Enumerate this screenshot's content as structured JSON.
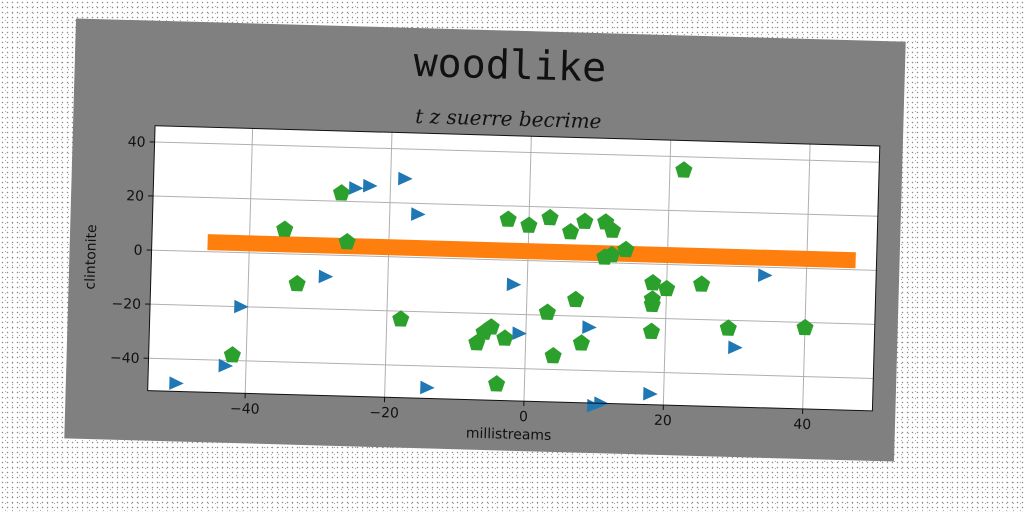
{
  "chart_data": {
    "type": "scatter",
    "title": "woodlike",
    "subtitle": "t z suerre becrime",
    "xlabel": "millistreams",
    "ylabel": "clintonite",
    "xlim": [
      -54,
      50
    ],
    "ylim": [
      -52,
      46
    ],
    "xticks": [
      -40,
      -20,
      0,
      20,
      40
    ],
    "yticks": [
      -40,
      -20,
      0,
      20,
      40
    ],
    "xtick_labels": [
      "−40",
      "−20",
      "0",
      "20",
      "40"
    ],
    "ytick_labels": [
      "−40",
      "−20",
      "0",
      "20",
      "40"
    ],
    "grid": true,
    "series": [
      {
        "marker": "triangle-right",
        "color": "#1f77b4",
        "points": [
          [
            -50,
            -49
          ],
          [
            -43,
            -42
          ],
          [
            -41,
            -20
          ],
          [
            -25,
            25
          ],
          [
            -23,
            26
          ],
          [
            -18,
            29
          ],
          [
            -16,
            16
          ],
          [
            -14,
            -48
          ],
          [
            -29,
            -8
          ],
          [
            -2,
            -9
          ],
          [
            -1,
            -27
          ],
          [
            9,
            -24
          ],
          [
            10,
            -53
          ],
          [
            11,
            -52
          ],
          [
            18,
            -48
          ],
          [
            30,
            -30
          ],
          [
            34,
            -3
          ]
        ]
      },
      {
        "marker": "band",
        "color": "#ff7f0e",
        "points": [
          [
            -46,
            3.5
          ],
          [
            47,
            3.5
          ]
        ]
      },
      {
        "marker": "pentagon",
        "color": "#2ca02c",
        "points": [
          [
            -42,
            -38
          ],
          [
            -35,
            9
          ],
          [
            -33,
            -11
          ],
          [
            -27,
            23
          ],
          [
            -26,
            5
          ],
          [
            -18,
            -23
          ],
          [
            -7,
            -31
          ],
          [
            -6,
            -27
          ],
          [
            -5,
            -25
          ],
          [
            -4,
            -46
          ],
          [
            -3,
            -29
          ],
          [
            -3,
            15
          ],
          [
            0,
            13
          ],
          [
            3,
            16
          ],
          [
            3,
            -19
          ],
          [
            4,
            -35
          ],
          [
            6,
            11
          ],
          [
            7,
            -14
          ],
          [
            8,
            15
          ],
          [
            8,
            -30
          ],
          [
            11,
            15
          ],
          [
            11,
            2
          ],
          [
            12,
            3
          ],
          [
            12,
            12
          ],
          [
            14,
            5
          ],
          [
            18,
            -7
          ],
          [
            18,
            -13
          ],
          [
            18,
            -15
          ],
          [
            18,
            -25
          ],
          [
            20,
            -9
          ],
          [
            22,
            35
          ],
          [
            25,
            -7
          ],
          [
            29,
            -23
          ],
          [
            40,
            -22
          ]
        ]
      }
    ]
  }
}
